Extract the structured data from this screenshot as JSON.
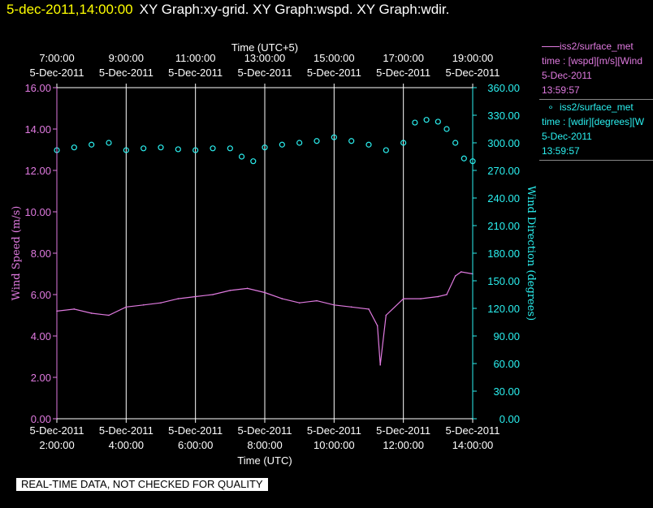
{
  "header": {
    "date_time": "5-dec-2011,14:00:00",
    "graphs": "XY Graph:xy-grid.  XY Graph:wspd.  XY Graph:wdir."
  },
  "legend": {
    "series1": {
      "line1": "iss2/surface_met",
      "line2": "time : [wspd][m/s][Wind",
      "line3": "5-Dec-2011",
      "line4": "13:59:57"
    },
    "series2": {
      "line1": "iss2/surface_met",
      "line2": "time : [wdir][degrees][W",
      "line3": "5-Dec-2011",
      "line4": "13:59:57"
    }
  },
  "disclaimer": "REAL-TIME DATA, NOT CHECKED FOR QUALITY",
  "colors": {
    "wspd": "#e07ae0",
    "wdir": "#2bf0f0",
    "grid": "#ffffff",
    "background": "#000000"
  },
  "chart_data": {
    "type": "line",
    "top_axis": {
      "label": "Time (UTC+5)",
      "ticks": [
        {
          "time": "7:00:00",
          "date": "5-Dec-2011"
        },
        {
          "time": "9:00:00",
          "date": "5-Dec-2011"
        },
        {
          "time": "11:00:00",
          "date": "5-Dec-2011"
        },
        {
          "time": "13:00:00",
          "date": "5-Dec-2011"
        },
        {
          "time": "15:00:00",
          "date": "5-Dec-2011"
        },
        {
          "time": "17:00:00",
          "date": "5-Dec-2011"
        },
        {
          "time": "19:00:00",
          "date": "5-Dec-2011"
        }
      ]
    },
    "xaxis": {
      "label": "Time (UTC)",
      "range": [
        "2:00:00",
        "14:00:00"
      ],
      "ticks": [
        {
          "time": "2:00:00",
          "date": "5-Dec-2011"
        },
        {
          "time": "4:00:00",
          "date": "5-Dec-2011"
        },
        {
          "time": "6:00:00",
          "date": "5-Dec-2011"
        },
        {
          "time": "8:00:00",
          "date": "5-Dec-2011"
        },
        {
          "time": "10:00:00",
          "date": "5-Dec-2011"
        },
        {
          "time": "12:00:00",
          "date": "5-Dec-2011"
        },
        {
          "time": "14:00:00",
          "date": "5-Dec-2011"
        }
      ]
    },
    "y_left": {
      "label": "Wind Speed (m/s)",
      "range": [
        0,
        16
      ],
      "ticks": [
        "0.00",
        "2.00",
        "4.00",
        "6.00",
        "8.00",
        "10.00",
        "12.00",
        "14.00",
        "16.00"
      ]
    },
    "y_right": {
      "label": "Wind Direction (degrees)",
      "range": [
        0,
        360
      ],
      "ticks": [
        "0.00",
        "30.00",
        "60.00",
        "90.00",
        "120.00",
        "150.00",
        "180.00",
        "210.00",
        "240.00",
        "270.00",
        "300.00",
        "330.00",
        "360.00"
      ]
    },
    "grid": "vertical lines at major x ticks",
    "series": [
      {
        "name": "wspd",
        "style": "line",
        "axis": "left",
        "x": [
          "2:00:00",
          "2:30:00",
          "3:00:00",
          "3:30:00",
          "4:00:00",
          "4:30:00",
          "5:00:00",
          "5:30:00",
          "6:00:00",
          "6:30:00",
          "7:00:00",
          "7:30:00",
          "8:00:00",
          "8:30:00",
          "9:00:00",
          "9:30:00",
          "10:00:00",
          "10:30:00",
          "11:00:00",
          "11:15:00",
          "11:20:00",
          "11:30:00",
          "12:00:00",
          "12:30:00",
          "13:00:00",
          "13:15:00",
          "13:30:00",
          "13:40:00",
          "14:00:00"
        ],
        "values": [
          5.2,
          5.3,
          5.1,
          5.0,
          5.4,
          5.5,
          5.6,
          5.8,
          5.9,
          6.0,
          6.2,
          6.3,
          6.1,
          5.8,
          5.6,
          5.7,
          5.5,
          5.4,
          5.3,
          4.5,
          2.6,
          5.0,
          5.8,
          5.8,
          5.9,
          6.0,
          6.9,
          7.1,
          7.0
        ]
      },
      {
        "name": "wdir",
        "style": "circles",
        "axis": "right",
        "x": [
          "2:00:00",
          "2:30:00",
          "3:00:00",
          "3:30:00",
          "4:00:00",
          "4:30:00",
          "5:00:00",
          "5:30:00",
          "6:00:00",
          "6:30:00",
          "7:00:00",
          "7:20:00",
          "7:40:00",
          "8:00:00",
          "8:30:00",
          "9:00:00",
          "9:30:00",
          "10:00:00",
          "10:30:00",
          "11:00:00",
          "11:30:00",
          "12:00:00",
          "12:20:00",
          "12:40:00",
          "13:00:00",
          "13:15:00",
          "13:30:00",
          "13:45:00",
          "14:00:00"
        ],
        "values": [
          292,
          295,
          298,
          300,
          292,
          294,
          295,
          293,
          292,
          294,
          294,
          285,
          280,
          295,
          298,
          300,
          302,
          306,
          302,
          298,
          292,
          300,
          322,
          325,
          323,
          315,
          300,
          283,
          280
        ]
      }
    ]
  }
}
